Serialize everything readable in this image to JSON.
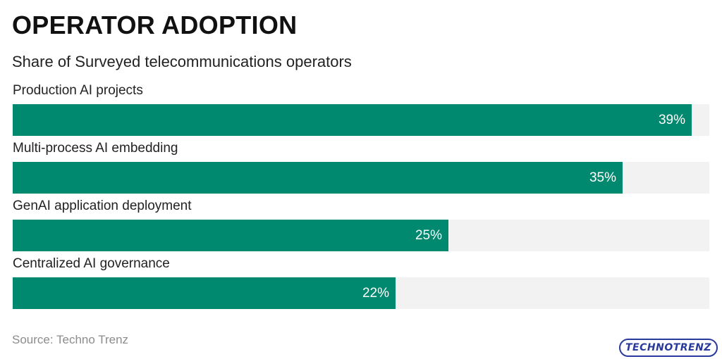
{
  "header": {
    "title": "OPERATOR ADOPTION",
    "subtitle": "Share of Surveyed telecommunications operators"
  },
  "footer": {
    "source": "Source: Techno Trenz",
    "logo_text": "TECHNOTRENZ"
  },
  "colors": {
    "bar": "#00896f",
    "track": "#f2f2f2",
    "logo": "#2a3a9c"
  },
  "chart_data": {
    "type": "bar",
    "orientation": "horizontal",
    "title": "OPERATOR ADOPTION",
    "subtitle": "Share of Surveyed telecommunications operators",
    "categories": [
      "Production AI projects",
      "Multi-process AI embedding",
      "GenAI application deployment",
      "Centralized AI governance"
    ],
    "values": [
      39,
      35,
      25,
      22
    ],
    "value_labels": [
      "39%",
      "35%",
      "25%",
      "22%"
    ],
    "unit": "%",
    "xlim": [
      0,
      40
    ],
    "grid": false,
    "legend": "none"
  }
}
